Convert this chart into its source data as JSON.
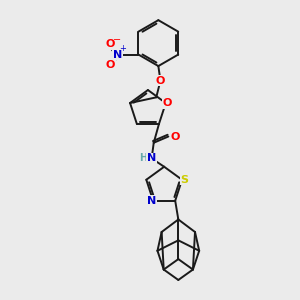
{
  "bg_color": "#ebebeb",
  "bond_color": "#1a1a1a",
  "atom_colors": {
    "O": "#ff0000",
    "N": "#0000cd",
    "S": "#cccc00",
    "H": "#66aaaa",
    "C": "#1a1a1a"
  },
  "figsize": [
    3.0,
    3.0
  ],
  "dpi": 100
}
